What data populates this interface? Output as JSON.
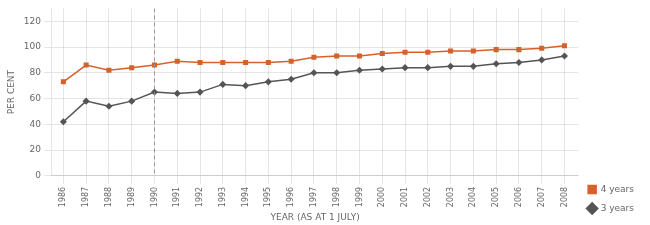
{
  "chart_data": {
    "type": "line",
    "x": [
      1986,
      1987,
      1988,
      1989,
      1990,
      1991,
      1992,
      1993,
      1994,
      1995,
      1996,
      1997,
      1998,
      1999,
      2000,
      2001,
      2002,
      2003,
      2004,
      2005,
      2006,
      2007,
      2008
    ],
    "series": [
      {
        "name": "4 years",
        "color": "#d4622a",
        "marker": "square",
        "values": [
          73,
          86,
          82,
          84,
          86,
          89,
          88,
          88,
          88,
          88,
          89,
          92,
          93,
          93,
          95,
          96,
          96,
          97,
          97,
          98,
          98,
          99,
          101
        ]
      },
      {
        "name": "3 years",
        "color": "#555555",
        "marker": "diamond",
        "values": [
          42,
          58,
          54,
          58,
          65,
          64,
          65,
          71,
          70,
          73,
          75,
          80,
          80,
          82,
          83,
          84,
          84,
          85,
          85,
          87,
          88,
          90,
          93
        ]
      }
    ],
    "xlabel": "YEAR (AS AT 1 JULY)",
    "ylabel": "PER CENT",
    "xlim": [
      1985.5,
      2008.6
    ],
    "xticks": [
      1986,
      1987,
      1988,
      1989,
      1990,
      1991,
      1992,
      1993,
      1994,
      1995,
      1996,
      1997,
      1998,
      1999,
      2000,
      2001,
      2002,
      2003,
      2004,
      2005,
      2006,
      2007,
      2008
    ],
    "ylim": [
      0,
      130
    ],
    "yticks": [
      0,
      20,
      40,
      60,
      80,
      100,
      120
    ],
    "grid": true,
    "legend": "lower right",
    "vline_x": 1990
  }
}
